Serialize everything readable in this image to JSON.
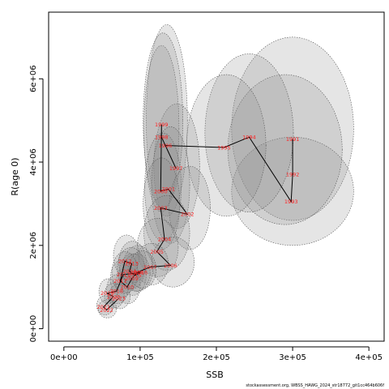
{
  "chart_data": {
    "type": "scatter",
    "title": "",
    "xlabel": "SSB",
    "ylabel": "R(age 0)",
    "xlim": [
      -20000,
      420000
    ],
    "ylim": [
      -300000,
      7600000
    ],
    "x_ticks": [
      {
        "value": 0,
        "label": "0e+00"
      },
      {
        "value": 100000,
        "label": "1e+05"
      },
      {
        "value": 200000,
        "label": "2e+05"
      },
      {
        "value": 300000,
        "label": "3e+05"
      },
      {
        "value": 400000,
        "label": "4e+05"
      }
    ],
    "y_ticks": [
      {
        "value": 0,
        "label": "0e+00"
      },
      {
        "value": 2000000,
        "label": "2e+06"
      },
      {
        "value": 4000000,
        "label": "4e+06"
      },
      {
        "value": 6000000,
        "label": "6e+06"
      }
    ],
    "grid": false,
    "legend": "none",
    "line_color": "#000000",
    "label_color": "#ff2020",
    "ellipse_fill": "#8a8a8a",
    "points": [
      {
        "year": "1991",
        "x": 300000,
        "y": 4550000
      },
      {
        "year": "1992",
        "x": 300000,
        "y": 3700000
      },
      {
        "year": "1993",
        "x": 298000,
        "y": 3050000
      },
      {
        "year": "1994",
        "x": 243000,
        "y": 4600000
      },
      {
        "year": "1995",
        "x": 210000,
        "y": 4350000
      },
      {
        "year": "1996",
        "x": 133000,
        "y": 4400000
      },
      {
        "year": "1997",
        "x": 147000,
        "y": 3850000
      },
      {
        "year": "1998",
        "x": 128000,
        "y": 4600000
      },
      {
        "year": "1999",
        "x": 128000,
        "y": 4900000
      },
      {
        "year": "2000",
        "x": 127000,
        "y": 3300000
      },
      {
        "year": "2001",
        "x": 137000,
        "y": 3350000
      },
      {
        "year": "2002",
        "x": 162000,
        "y": 2750000
      },
      {
        "year": "2003",
        "x": 127000,
        "y": 2900000
      },
      {
        "year": "2004",
        "x": 132000,
        "y": 2150000
      },
      {
        "year": "2005",
        "x": 122000,
        "y": 1850000
      },
      {
        "year": "2006",
        "x": 140000,
        "y": 1520000
      },
      {
        "year": "2007",
        "x": 113000,
        "y": 1480000
      },
      {
        "year": "2008",
        "x": 96000,
        "y": 1350000
      },
      {
        "year": "2009",
        "x": 89000,
        "y": 1200000
      },
      {
        "year": "2010",
        "x": 83000,
        "y": 1000000
      },
      {
        "year": "2011",
        "x": 74000,
        "y": 1150000
      },
      {
        "year": "2012",
        "x": 80000,
        "y": 1620000
      },
      {
        "year": "2013",
        "x": 89000,
        "y": 1560000
      },
      {
        "year": "2014",
        "x": 86000,
        "y": 1380000
      },
      {
        "year": "2015",
        "x": 93000,
        "y": 1280000
      },
      {
        "year": "2016",
        "x": 101000,
        "y": 1350000
      },
      {
        "year": "2017",
        "x": 78000,
        "y": 1300000
      },
      {
        "year": "2018",
        "x": 69000,
        "y": 900000
      },
      {
        "year": "2019",
        "x": 57000,
        "y": 850000
      },
      {
        "year": "2020",
        "x": 65000,
        "y": 770000
      },
      {
        "year": "2021",
        "x": 52000,
        "y": 520000
      },
      {
        "year": "2022",
        "x": 56000,
        "y": 450000
      },
      {
        "year": "2023",
        "x": 72000,
        "y": 730000
      }
    ],
    "ellipses": [
      {
        "cx": 300000,
        "cy": 4800000,
        "rx": 80000,
        "ry": 2200000
      },
      {
        "cx": 300000,
        "cy": 3300000,
        "rx": 80000,
        "ry": 1300000
      },
      {
        "cx": 290000,
        "cy": 4300000,
        "rx": 75000,
        "ry": 1800000
      },
      {
        "cx": 243000,
        "cy": 4700000,
        "rx": 58000,
        "ry": 1900000
      },
      {
        "cx": 213000,
        "cy": 4400000,
        "rx": 52000,
        "ry": 1700000
      },
      {
        "cx": 135000,
        "cy": 5000000,
        "rx": 27000,
        "ry": 2300000
      },
      {
        "cx": 148000,
        "cy": 3900000,
        "rx": 30000,
        "ry": 1500000
      },
      {
        "cx": 128000,
        "cy": 4800000,
        "rx": 23000,
        "ry": 2000000
      },
      {
        "cx": 130000,
        "cy": 5000000,
        "rx": 26000,
        "ry": 2100000
      },
      {
        "cx": 130000,
        "cy": 3400000,
        "rx": 24000,
        "ry": 1300000
      },
      {
        "cx": 140000,
        "cy": 3450000,
        "rx": 25000,
        "ry": 1400000
      },
      {
        "cx": 165000,
        "cy": 2900000,
        "rx": 27000,
        "ry": 1000000
      },
      {
        "cx": 128000,
        "cy": 3000000,
        "rx": 24000,
        "ry": 1100000
      },
      {
        "cx": 135000,
        "cy": 2300000,
        "rx": 30000,
        "ry": 900000
      },
      {
        "cx": 123000,
        "cy": 1950000,
        "rx": 27000,
        "ry": 700000
      },
      {
        "cx": 143000,
        "cy": 1600000,
        "rx": 28000,
        "ry": 600000
      },
      {
        "cx": 115000,
        "cy": 1550000,
        "rx": 22000,
        "ry": 500000
      },
      {
        "cx": 97000,
        "cy": 1450000,
        "rx": 20000,
        "ry": 550000
      },
      {
        "cx": 90000,
        "cy": 1300000,
        "rx": 18000,
        "ry": 500000
      },
      {
        "cx": 84000,
        "cy": 1050000,
        "rx": 16000,
        "ry": 450000
      },
      {
        "cx": 76000,
        "cy": 1200000,
        "rx": 15000,
        "ry": 450000
      },
      {
        "cx": 82000,
        "cy": 1750000,
        "rx": 17000,
        "ry": 500000
      },
      {
        "cx": 90000,
        "cy": 1600000,
        "rx": 18000,
        "ry": 500000
      },
      {
        "cx": 88000,
        "cy": 1450000,
        "rx": 18000,
        "ry": 500000
      },
      {
        "cx": 95000,
        "cy": 1350000,
        "rx": 18000,
        "ry": 450000
      },
      {
        "cx": 103000,
        "cy": 1420000,
        "rx": 18000,
        "ry": 450000
      },
      {
        "cx": 80000,
        "cy": 1350000,
        "rx": 17000,
        "ry": 500000
      },
      {
        "cx": 70000,
        "cy": 950000,
        "rx": 14000,
        "ry": 350000
      },
      {
        "cx": 58000,
        "cy": 900000,
        "rx": 12000,
        "ry": 300000
      },
      {
        "cx": 66000,
        "cy": 800000,
        "rx": 13000,
        "ry": 300000
      },
      {
        "cx": 54000,
        "cy": 560000,
        "rx": 11000,
        "ry": 230000
      },
      {
        "cx": 57000,
        "cy": 480000,
        "rx": 12000,
        "ry": 220000
      },
      {
        "cx": 73000,
        "cy": 780000,
        "rx": 14000,
        "ry": 300000
      }
    ]
  },
  "footer_text": "stockassessment.org, WBSS_HAWG_2024_str18772_git1cc464b606f"
}
